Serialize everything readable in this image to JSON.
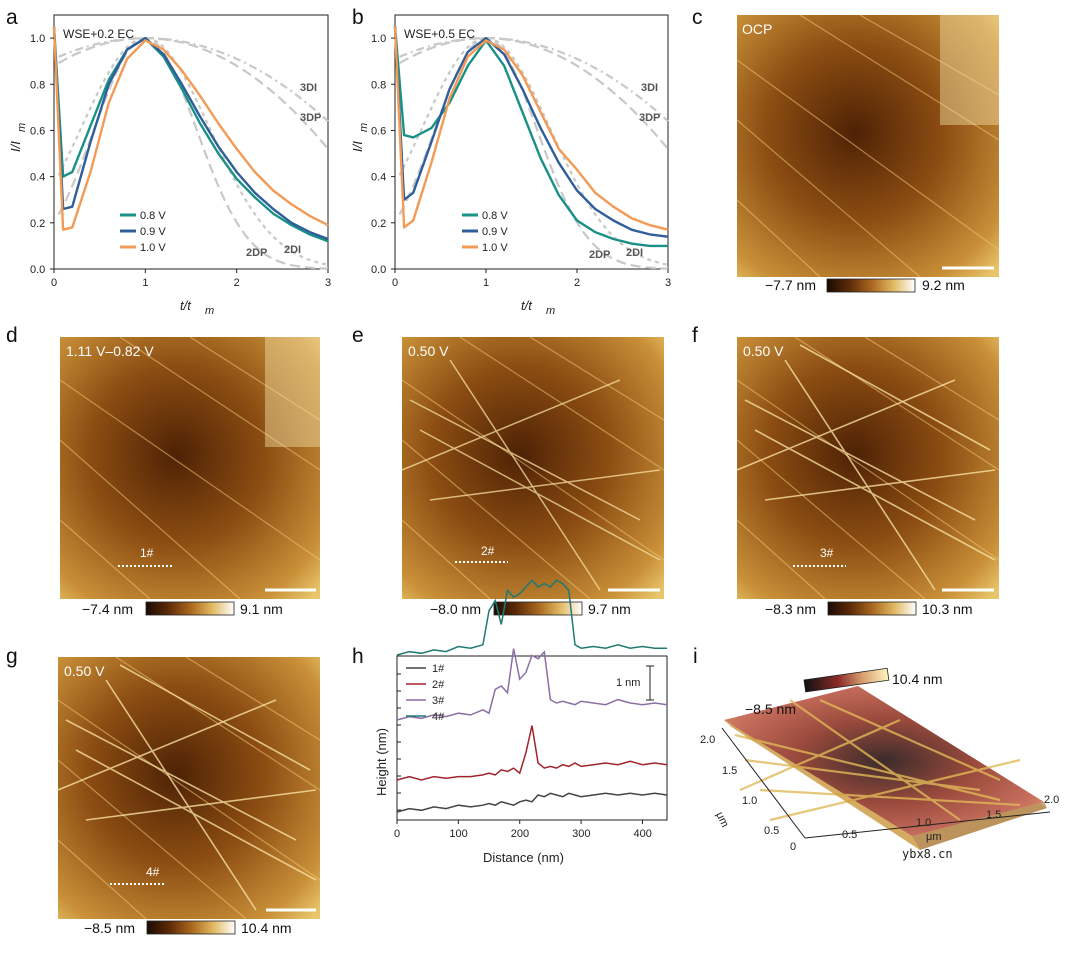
{
  "panels": {
    "a": {
      "letter": "a",
      "condition": "WSE+0.2 EC",
      "xlabel": "t/t",
      "xlabel_sub": "m",
      "ylabel": "I/I",
      "ylabel_sub": "m",
      "ref_labels": [
        "3DI",
        "3DP",
        "2DP",
        "2DI"
      ],
      "legend": [
        "0.8 V",
        "0.9 V",
        "1.0 V"
      ]
    },
    "b": {
      "letter": "b",
      "condition": "WSE+0.5 EC",
      "xlabel": "t/t",
      "xlabel_sub": "m",
      "ylabel": "I/I",
      "ylabel_sub": "m",
      "ref_labels": [
        "3DI",
        "3DP",
        "2DP",
        "2DI"
      ],
      "legend": [
        "0.8 V",
        "0.9 V",
        "1.0 V"
      ]
    },
    "c": {
      "letter": "c",
      "image_label": "OCP",
      "cbar_min": "−7.7 nm",
      "cbar_max": "9.2 nm"
    },
    "d": {
      "letter": "d",
      "image_label": "1.11 V–0.82 V",
      "marker": "1#",
      "cbar_min": "−7.4 nm",
      "cbar_max": "9.1 nm"
    },
    "e": {
      "letter": "e",
      "image_label": "0.50 V",
      "marker": "2#",
      "cbar_min": "−8.0 nm",
      "cbar_max": "9.7 nm"
    },
    "f": {
      "letter": "f",
      "image_label": "0.50 V",
      "marker": "3#",
      "cbar_min": "−8.3 nm",
      "cbar_max": "10.3 nm"
    },
    "g": {
      "letter": "g",
      "image_label": "0.50 V",
      "marker": "4#",
      "cbar_min": "−8.5 nm",
      "cbar_max": "10.4 nm"
    },
    "h": {
      "letter": "h",
      "xlabel": "Distance (nm)",
      "ylabel": "Height (nm)",
      "scale": "1 nm",
      "legend": [
        "1#",
        "2#",
        "3#",
        "4#"
      ]
    },
    "i": {
      "letter": "i",
      "cbar_min": "−8.5 nm",
      "cbar_max": "10.4 nm",
      "axis_unit": "μm",
      "x_ticks": [
        "0",
        "0.5",
        "1.0",
        "1.5",
        "2.0"
      ],
      "y_ticks": [
        "0",
        "0.5",
        "1.0",
        "1.5",
        "2.0"
      ]
    }
  },
  "watermark": "ybx8.cn",
  "colors": {
    "teal": "#1a9186",
    "blue": "#2f5e9a",
    "orange": "#f39a55",
    "ref": "#c8c8c8",
    "h1": "#444444",
    "h2": "#a1242a",
    "h3": "#8c6fa4",
    "h4": "#1f7a72"
  },
  "chart_data": [
    {
      "id": "a",
      "type": "line",
      "title": "WSE+0.2 EC",
      "xlabel": "t/tm",
      "ylabel": "I/Im",
      "xlim": [
        0,
        3
      ],
      "ylim": [
        0,
        1.1
      ],
      "x_ticks": [
        0,
        1,
        2,
        3
      ],
      "y_ticks": [
        0.0,
        0.2,
        0.4,
        0.6,
        0.8,
        1.0
      ],
      "x_samples": [
        0,
        0.1,
        0.2,
        0.4,
        0.6,
        0.8,
        1.0,
        1.2,
        1.4,
        1.6,
        1.8,
        2.0,
        2.2,
        2.4,
        2.6,
        2.8,
        3.0
      ],
      "series": [
        {
          "name": "0.8 V",
          "values": [
            1.05,
            0.4,
            0.42,
            0.62,
            0.82,
            0.95,
            1.0,
            0.92,
            0.78,
            0.63,
            0.5,
            0.39,
            0.31,
            0.24,
            0.19,
            0.15,
            0.12
          ]
        },
        {
          "name": "0.9 V",
          "values": [
            1.05,
            0.26,
            0.27,
            0.55,
            0.8,
            0.95,
            1.0,
            0.93,
            0.8,
            0.66,
            0.53,
            0.42,
            0.33,
            0.26,
            0.2,
            0.16,
            0.13
          ]
        },
        {
          "name": "1.0 V",
          "values": [
            1.05,
            0.17,
            0.18,
            0.42,
            0.72,
            0.91,
            0.99,
            0.95,
            0.86,
            0.75,
            0.63,
            0.52,
            0.42,
            0.34,
            0.28,
            0.23,
            0.19
          ]
        }
      ]
    },
    {
      "id": "b",
      "type": "line",
      "title": "WSE+0.5 EC",
      "xlabel": "t/tm",
      "ylabel": "I/Im",
      "xlim": [
        0,
        3
      ],
      "ylim": [
        0,
        1.1
      ],
      "x_ticks": [
        0,
        1,
        2,
        3
      ],
      "y_ticks": [
        0.0,
        0.2,
        0.4,
        0.6,
        0.8,
        1.0
      ],
      "x_samples": [
        0,
        0.1,
        0.2,
        0.4,
        0.6,
        0.8,
        1.0,
        1.2,
        1.4,
        1.6,
        1.8,
        2.0,
        2.2,
        2.4,
        2.6,
        2.8,
        3.0
      ],
      "series": [
        {
          "name": "0.8 V",
          "values": [
            1.05,
            0.58,
            0.57,
            0.61,
            0.72,
            0.88,
            0.99,
            0.88,
            0.68,
            0.48,
            0.32,
            0.21,
            0.16,
            0.13,
            0.11,
            0.1,
            0.1
          ]
        },
        {
          "name": "0.9 V",
          "values": [
            1.05,
            0.3,
            0.33,
            0.55,
            0.78,
            0.94,
            1.0,
            0.93,
            0.78,
            0.61,
            0.46,
            0.34,
            0.26,
            0.21,
            0.17,
            0.15,
            0.14
          ]
        },
        {
          "name": "1.0 V",
          "values": [
            1.05,
            0.18,
            0.21,
            0.46,
            0.74,
            0.92,
            0.99,
            0.95,
            0.84,
            0.68,
            0.52,
            0.43,
            0.33,
            0.27,
            0.22,
            0.19,
            0.17
          ]
        }
      ]
    },
    {
      "id": "h",
      "type": "line",
      "xlabel": "Distance (nm)",
      "ylabel": "Height (nm)",
      "xlim": [
        0,
        440
      ],
      "x_ticks": [
        0,
        100,
        200,
        300,
        400
      ],
      "x_samples": [
        0,
        20,
        40,
        60,
        80,
        100,
        120,
        140,
        150,
        160,
        170,
        180,
        190,
        200,
        210,
        220,
        230,
        240,
        250,
        260,
        270,
        280,
        290,
        300,
        320,
        340,
        360,
        380,
        400,
        420,
        440
      ],
      "series": [
        {
          "name": "1#",
          "values": [
            0.0,
            0.1,
            0.05,
            0.15,
            0.1,
            0.2,
            0.15,
            0.2,
            0.25,
            0.2,
            0.3,
            0.25,
            0.2,
            0.3,
            0.35,
            0.3,
            0.5,
            0.45,
            0.55,
            0.5,
            0.45,
            0.55,
            0.5,
            0.45,
            0.5,
            0.55,
            0.5,
            0.55,
            0.5,
            0.55,
            0.5
          ]
        },
        {
          "name": "2#",
          "values": [
            0.0,
            0.1,
            0.0,
            0.1,
            0.05,
            0.1,
            0.1,
            0.15,
            0.2,
            0.15,
            0.3,
            0.25,
            0.35,
            0.2,
            0.8,
            1.6,
            0.5,
            0.35,
            0.4,
            0.35,
            0.45,
            0.4,
            0.5,
            0.4,
            0.45,
            0.5,
            0.45,
            0.55,
            0.45,
            0.5,
            0.45
          ]
        },
        {
          "name": "3#",
          "values": [
            0.0,
            0.1,
            0.05,
            0.15,
            0.1,
            0.2,
            0.15,
            0.3,
            0.2,
            0.9,
            1.0,
            0.8,
            2.1,
            1.2,
            1.4,
            1.9,
            1.8,
            2.0,
            0.6,
            0.5,
            0.55,
            0.5,
            0.45,
            0.55,
            0.5,
            0.45,
            0.6,
            0.5,
            0.45,
            0.5,
            0.45
          ]
        },
        {
          "name": "4#",
          "values": [
            0.0,
            0.1,
            0.05,
            0.15,
            0.1,
            0.25,
            0.2,
            0.3,
            1.3,
            1.6,
            0.9,
            1.9,
            1.7,
            1.8,
            2.0,
            2.2,
            2.0,
            2.1,
            2.0,
            2.2,
            2.1,
            1.9,
            0.3,
            0.2,
            0.25,
            0.2,
            0.3,
            0.2,
            0.25,
            0.2,
            0.2
          ]
        }
      ]
    }
  ]
}
